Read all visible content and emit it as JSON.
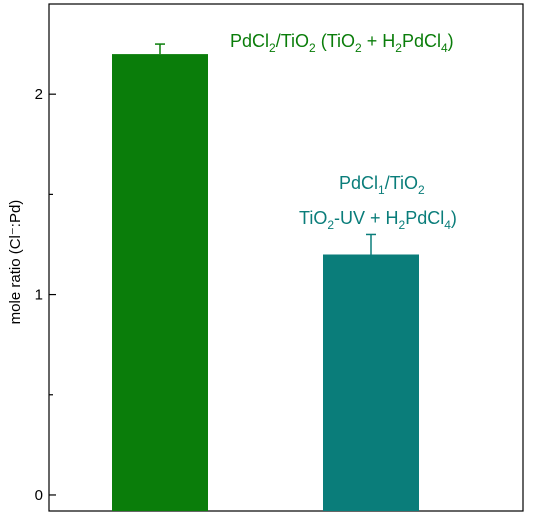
{
  "chart_data": {
    "type": "bar",
    "categories": [
      "PdCl2/TiO2 (TiO2 + H2PdCl4)",
      "PdCl1/TiO2 TiO2-UV + H2PdCl4)"
    ],
    "values": [
      2.2,
      1.2
    ],
    "errors": [
      0.05,
      0.1
    ],
    "colors": [
      "#0a7d0a",
      "#0a7d7a"
    ],
    "ylabel": "mole ratio (Cl⁻:Pd)",
    "ylim": [
      -0.08,
      2.45
    ],
    "yticks": [
      0,
      1,
      2
    ],
    "ytick_labels": [
      "0",
      "1",
      "2"
    ],
    "minor_yticks": [
      0.5,
      1.5
    ],
    "grid": false,
    "annotations": [
      {
        "text": "PdCl2/TiO2 (TiO2 + H2PdCl4)",
        "color": "#0a7d0a"
      },
      {
        "text": "PdCl1/TiO2",
        "color": "#0a7d7a"
      },
      {
        "text": "TiO2-UV + H2PdCl4)",
        "color": "#0a7d7a"
      }
    ]
  }
}
